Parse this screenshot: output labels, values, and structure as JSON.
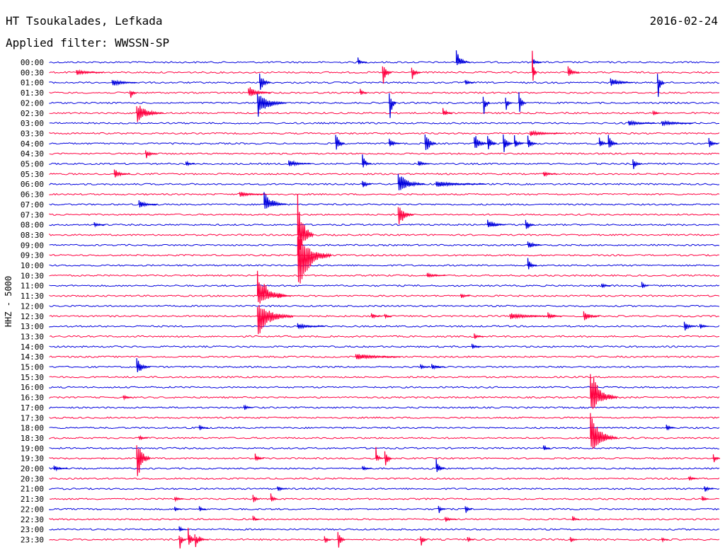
{
  "header": {
    "station": "HT Tsoukalades, Lefkada",
    "date": "2016-02-24",
    "filter": "Applied filter: WWSSN-SP",
    "channel": "HHZ - 5000"
  },
  "colors": {
    "blue": "#0000dd",
    "red": "#ff0040"
  },
  "chart_data": {
    "type": "line",
    "title": "HT Tsoukalades, Lefkada",
    "subtitle": "Applied filter: WWSSN-SP",
    "ylabel": "HHZ - 5000",
    "row_labels": [
      "00:00",
      "00:30",
      "01:00",
      "01:30",
      "02:00",
      "02:30",
      "03:00",
      "03:30",
      "04:00",
      "04:30",
      "05:00",
      "05:30",
      "06:00",
      "06:30",
      "07:00",
      "07:30",
      "08:00",
      "08:30",
      "09:00",
      "09:30",
      "10:00",
      "10:30",
      "11:00",
      "11:30",
      "12:00",
      "12:30",
      "13:00",
      "13:30",
      "14:00",
      "14:30",
      "15:00",
      "15:30",
      "16:00",
      "16:30",
      "17:00",
      "17:30",
      "18:00",
      "18:30",
      "19:00",
      "19:30",
      "20:00",
      "20:30",
      "21:00",
      "21:30",
      "22:00",
      "22:30",
      "23:00",
      "23:30"
    ],
    "row_colors": [
      "blue",
      "red"
    ],
    "minutes_per_row": 30,
    "events": [
      {
        "row": 0,
        "minute": 13.8,
        "up": 0.5,
        "down": 0.3,
        "dur": 0.4
      },
      {
        "row": 0,
        "minute": 18.2,
        "up": 1.2,
        "down": 0.4,
        "dur": 0.6
      },
      {
        "row": 0,
        "minute": 21.6,
        "up": 0.5,
        "down": 0.3,
        "dur": 0.4
      },
      {
        "row": 1,
        "minute": 1.2,
        "up": 0.3,
        "down": 0.3,
        "dur": 1.2
      },
      {
        "row": 1,
        "minute": 14.9,
        "up": 1.0,
        "down": 1.6,
        "dur": 0.4
      },
      {
        "row": 1,
        "minute": 16.2,
        "up": 0.6,
        "down": 1.0,
        "dur": 0.4
      },
      {
        "row": 1,
        "minute": 21.6,
        "up": 2.5,
        "down": 1.9,
        "dur": 0.2
      },
      {
        "row": 1,
        "minute": 23.2,
        "up": 0.8,
        "down": 0.6,
        "dur": 0.5
      },
      {
        "row": 2,
        "minute": 2.8,
        "up": 0.4,
        "down": 0.4,
        "dur": 1.1
      },
      {
        "row": 2,
        "minute": 9.4,
        "up": 1.1,
        "down": 1.2,
        "dur": 0.5
      },
      {
        "row": 2,
        "minute": 18.6,
        "up": 0.4,
        "down": 0.3,
        "dur": 0.4
      },
      {
        "row": 2,
        "minute": 25.1,
        "up": 0.6,
        "down": 0.4,
        "dur": 1.0
      },
      {
        "row": 2,
        "minute": 27.2,
        "up": 1.0,
        "down": 2.3,
        "dur": 0.3
      },
      {
        "row": 3,
        "minute": 3.6,
        "up": 0.3,
        "down": 1.1,
        "dur": 0.3
      },
      {
        "row": 3,
        "minute": 8.9,
        "up": 0.7,
        "down": 0.5,
        "dur": 1.0
      },
      {
        "row": 3,
        "minute": 13.9,
        "up": 0.5,
        "down": 0.3,
        "dur": 0.3
      },
      {
        "row": 4,
        "minute": 9.3,
        "up": 1.0,
        "down": 1.5,
        "dur": 1.3
      },
      {
        "row": 4,
        "minute": 15.2,
        "up": 1.0,
        "down": 2.3,
        "dur": 0.3
      },
      {
        "row": 4,
        "minute": 19.4,
        "up": 0.6,
        "down": 2.0,
        "dur": 0.3
      },
      {
        "row": 4,
        "minute": 20.4,
        "up": 0.6,
        "down": 1.2,
        "dur": 0.3
      },
      {
        "row": 4,
        "minute": 21.0,
        "up": 1.3,
        "down": 1.5,
        "dur": 0.3
      },
      {
        "row": 5,
        "minute": 3.9,
        "up": 1.1,
        "down": 1.0,
        "dur": 1.2
      },
      {
        "row": 5,
        "minute": 17.6,
        "up": 0.7,
        "down": 0.4,
        "dur": 0.4
      },
      {
        "row": 5,
        "minute": 27.0,
        "up": 0.4,
        "down": 0.3,
        "dur": 0.3
      },
      {
        "row": 6,
        "minute": 25.9,
        "up": 0.3,
        "down": 0.3,
        "dur": 1.2
      },
      {
        "row": 6,
        "minute": 27.4,
        "up": 0.3,
        "down": 0.3,
        "dur": 1.4
      },
      {
        "row": 7,
        "minute": 21.5,
        "up": 0.3,
        "down": 0.3,
        "dur": 1.5
      },
      {
        "row": 8,
        "minute": 12.8,
        "up": 1.3,
        "down": 1.2,
        "dur": 0.4
      },
      {
        "row": 8,
        "minute": 15.2,
        "up": 0.6,
        "down": 0.4,
        "dur": 0.5
      },
      {
        "row": 8,
        "minute": 16.8,
        "up": 1.3,
        "down": 1.4,
        "dur": 0.5
      },
      {
        "row": 8,
        "minute": 19.0,
        "up": 1.1,
        "down": 0.8,
        "dur": 0.6
      },
      {
        "row": 8,
        "minute": 19.6,
        "up": 1.2,
        "down": 1.0,
        "dur": 0.4
      },
      {
        "row": 8,
        "minute": 20.3,
        "up": 1.1,
        "down": 1.2,
        "dur": 0.4
      },
      {
        "row": 8,
        "minute": 20.8,
        "up": 0.9,
        "down": 0.7,
        "dur": 0.4
      },
      {
        "row": 8,
        "minute": 21.4,
        "up": 0.8,
        "down": 0.7,
        "dur": 0.4
      },
      {
        "row": 8,
        "minute": 24.6,
        "up": 0.6,
        "down": 0.5,
        "dur": 0.4
      },
      {
        "row": 8,
        "minute": 25.0,
        "up": 1.0,
        "down": 0.9,
        "dur": 0.4
      },
      {
        "row": 8,
        "minute": 29.5,
        "up": 0.6,
        "down": 0.5,
        "dur": 0.4
      },
      {
        "row": 9,
        "minute": 4.3,
        "up": 0.4,
        "down": 0.6,
        "dur": 0.5
      },
      {
        "row": 10,
        "minute": 6.1,
        "up": 0.3,
        "down": 0.3,
        "dur": 0.4
      },
      {
        "row": 10,
        "minute": 10.7,
        "up": 0.5,
        "down": 0.3,
        "dur": 1.0
      },
      {
        "row": 10,
        "minute": 14.0,
        "up": 1.0,
        "down": 0.5,
        "dur": 0.4
      },
      {
        "row": 10,
        "minute": 16.5,
        "up": 0.4,
        "down": 0.3,
        "dur": 0.5
      },
      {
        "row": 10,
        "minute": 26.1,
        "up": 0.6,
        "down": 0.7,
        "dur": 0.4
      },
      {
        "row": 11,
        "minute": 2.9,
        "up": 0.5,
        "down": 0.5,
        "dur": 0.7
      },
      {
        "row": 11,
        "minute": 22.1,
        "up": 0.3,
        "down": 0.3,
        "dur": 0.6
      },
      {
        "row": 12,
        "minute": 14.0,
        "up": 0.4,
        "down": 0.6,
        "dur": 0.4
      },
      {
        "row": 12,
        "minute": 15.6,
        "up": 1.3,
        "down": 0.9,
        "dur": 1.2
      },
      {
        "row": 12,
        "minute": 17.3,
        "up": 0.3,
        "down": 0.3,
        "dur": 2.2
      },
      {
        "row": 13,
        "minute": 8.5,
        "up": 0.3,
        "down": 0.3,
        "dur": 1.2
      },
      {
        "row": 14,
        "minute": 4.0,
        "up": 0.5,
        "down": 0.4,
        "dur": 0.8
      },
      {
        "row": 14,
        "minute": 9.6,
        "up": 1.6,
        "down": 0.6,
        "dur": 1.0
      },
      {
        "row": 15,
        "minute": 15.6,
        "up": 1.0,
        "down": 1.6,
        "dur": 0.7
      },
      {
        "row": 16,
        "minute": 2.0,
        "up": 0.3,
        "down": 0.3,
        "dur": 0.5
      },
      {
        "row": 16,
        "minute": 19.6,
        "up": 0.6,
        "down": 0.4,
        "dur": 0.8
      },
      {
        "row": 16,
        "minute": 21.3,
        "up": 0.5,
        "down": 0.8,
        "dur": 0.4
      },
      {
        "row": 17,
        "minute": 11.1,
        "up": 4.4,
        "down": 2.9,
        "dur": 0.7
      },
      {
        "row": 18,
        "minute": 21.4,
        "up": 0.6,
        "down": 0.5,
        "dur": 0.6
      },
      {
        "row": 19,
        "minute": 11.1,
        "up": 2.2,
        "down": 4.0,
        "dur": 1.5
      },
      {
        "row": 20,
        "minute": 21.4,
        "up": 0.8,
        "down": 0.6,
        "dur": 0.4
      },
      {
        "row": 21,
        "minute": 16.9,
        "up": 0.3,
        "down": 0.3,
        "dur": 0.8
      },
      {
        "row": 22,
        "minute": 24.7,
        "up": 0.3,
        "down": 0.3,
        "dur": 0.4
      },
      {
        "row": 22,
        "minute": 26.5,
        "up": 0.4,
        "down": 0.4,
        "dur": 0.3
      },
      {
        "row": 23,
        "minute": 9.3,
        "up": 2.7,
        "down": 1.1,
        "dur": 1.3
      },
      {
        "row": 23,
        "minute": 10.2,
        "up": 0.3,
        "down": 0.3,
        "dur": 0.6
      },
      {
        "row": 23,
        "minute": 18.4,
        "up": 0.3,
        "down": 0.3,
        "dur": 0.4
      },
      {
        "row": 25,
        "minute": 9.3,
        "up": 1.6,
        "down": 2.1,
        "dur": 1.6
      },
      {
        "row": 25,
        "minute": 14.4,
        "up": 0.3,
        "down": 0.3,
        "dur": 0.5
      },
      {
        "row": 25,
        "minute": 15.0,
        "up": 0.3,
        "down": 0.3,
        "dur": 0.3
      },
      {
        "row": 25,
        "minute": 20.6,
        "up": 0.3,
        "down": 0.3,
        "dur": 2.2
      },
      {
        "row": 25,
        "minute": 22.3,
        "up": 0.4,
        "down": 0.3,
        "dur": 0.6
      },
      {
        "row": 25,
        "minute": 23.9,
        "up": 0.6,
        "down": 0.6,
        "dur": 0.7
      },
      {
        "row": 26,
        "minute": 11.1,
        "up": 0.3,
        "down": 0.3,
        "dur": 1.2
      },
      {
        "row": 26,
        "minute": 28.4,
        "up": 0.6,
        "down": 0.6,
        "dur": 0.5
      },
      {
        "row": 26,
        "minute": 29.1,
        "up": 0.3,
        "down": 0.3,
        "dur": 0.4
      },
      {
        "row": 27,
        "minute": 19.0,
        "up": 0.3,
        "down": 0.3,
        "dur": 0.4
      },
      {
        "row": 28,
        "minute": 18.9,
        "up": 0.3,
        "down": 0.3,
        "dur": 0.4
      },
      {
        "row": 29,
        "minute": 13.7,
        "up": 0.4,
        "down": 0.4,
        "dur": 2.0
      },
      {
        "row": 30,
        "minute": 3.9,
        "up": 0.9,
        "down": 1.1,
        "dur": 0.6
      },
      {
        "row": 30,
        "minute": 16.6,
        "up": 0.3,
        "down": 0.3,
        "dur": 0.4
      },
      {
        "row": 30,
        "minute": 17.1,
        "up": 0.3,
        "down": 0.3,
        "dur": 0.6
      },
      {
        "row": 33,
        "minute": 3.3,
        "up": 0.3,
        "down": 0.3,
        "dur": 0.4
      },
      {
        "row": 33,
        "minute": 24.2,
        "up": 2.9,
        "down": 1.7,
        "dur": 1.2
      },
      {
        "row": 34,
        "minute": 8.7,
        "up": 0.3,
        "down": 0.3,
        "dur": 0.4
      },
      {
        "row": 36,
        "minute": 6.7,
        "up": 0.3,
        "down": 0.3,
        "dur": 0.4
      },
      {
        "row": 36,
        "minute": 27.6,
        "up": 0.4,
        "down": 0.3,
        "dur": 0.4
      },
      {
        "row": 37,
        "minute": 4.0,
        "up": 0.3,
        "down": 0.3,
        "dur": 0.4
      },
      {
        "row": 37,
        "minute": 24.2,
        "up": 2.5,
        "down": 1.6,
        "dur": 1.2
      },
      {
        "row": 38,
        "minute": 22.1,
        "up": 0.4,
        "down": 0.3,
        "dur": 0.3
      },
      {
        "row": 39,
        "minute": 3.9,
        "up": 2.3,
        "down": 2.6,
        "dur": 0.6
      },
      {
        "row": 39,
        "minute": 9.2,
        "up": 0.5,
        "down": 0.3,
        "dur": 0.4
      },
      {
        "row": 39,
        "minute": 14.6,
        "up": 1.2,
        "down": 0.5,
        "dur": 0.3
      },
      {
        "row": 39,
        "minute": 15.0,
        "up": 0.9,
        "down": 1.6,
        "dur": 0.3
      },
      {
        "row": 39,
        "minute": 29.7,
        "up": 0.4,
        "down": 0.6,
        "dur": 0.3
      },
      {
        "row": 40,
        "minute": 0.2,
        "up": 0.3,
        "down": 0.3,
        "dur": 0.6
      },
      {
        "row": 40,
        "minute": 14.0,
        "up": 0.3,
        "down": 0.3,
        "dur": 0.4
      },
      {
        "row": 40,
        "minute": 17.3,
        "up": 1.0,
        "down": 0.6,
        "dur": 0.4
      },
      {
        "row": 41,
        "minute": 28.6,
        "up": 0.3,
        "down": 0.3,
        "dur": 0.4
      },
      {
        "row": 42,
        "minute": 10.2,
        "up": 0.4,
        "down": 0.3,
        "dur": 0.4
      },
      {
        "row": 42,
        "minute": 29.3,
        "up": 0.4,
        "down": 0.4,
        "dur": 0.4
      },
      {
        "row": 43,
        "minute": 5.6,
        "up": 0.3,
        "down": 0.3,
        "dur": 0.4
      },
      {
        "row": 43,
        "minute": 9.1,
        "up": 0.6,
        "down": 0.8,
        "dur": 0.3
      },
      {
        "row": 43,
        "minute": 9.9,
        "up": 0.6,
        "down": 0.6,
        "dur": 0.3
      },
      {
        "row": 43,
        "minute": 29.2,
        "up": 0.5,
        "down": 0.4,
        "dur": 0.3
      },
      {
        "row": 44,
        "minute": 5.6,
        "up": 0.3,
        "down": 0.3,
        "dur": 0.3
      },
      {
        "row": 44,
        "minute": 6.7,
        "up": 0.3,
        "down": 0.3,
        "dur": 0.3
      },
      {
        "row": 44,
        "minute": 17.4,
        "up": 0.4,
        "down": 0.6,
        "dur": 0.3
      },
      {
        "row": 44,
        "minute": 18.6,
        "up": 0.5,
        "down": 0.6,
        "dur": 0.3
      },
      {
        "row": 45,
        "minute": 9.1,
        "up": 0.4,
        "down": 0.3,
        "dur": 0.3
      },
      {
        "row": 45,
        "minute": 17.7,
        "up": 0.3,
        "down": 0.3,
        "dur": 0.5
      },
      {
        "row": 45,
        "minute": 23.4,
        "up": 0.5,
        "down": 0.3,
        "dur": 0.3
      },
      {
        "row": 46,
        "minute": 5.8,
        "up": 0.4,
        "down": 0.3,
        "dur": 0.3
      },
      {
        "row": 47,
        "minute": 5.8,
        "up": 0.6,
        "down": 1.5,
        "dur": 0.3
      },
      {
        "row": 47,
        "minute": 6.2,
        "up": 1.8,
        "down": 1.3,
        "dur": 0.3
      },
      {
        "row": 47,
        "minute": 6.5,
        "up": 0.7,
        "down": 1.3,
        "dur": 0.3
      },
      {
        "row": 47,
        "minute": 6.7,
        "up": 0.3,
        "down": 0.3,
        "dur": 0.4
      },
      {
        "row": 47,
        "minute": 12.3,
        "up": 0.4,
        "down": 0.8,
        "dur": 0.3
      },
      {
        "row": 47,
        "minute": 12.9,
        "up": 1.2,
        "down": 1.2,
        "dur": 0.3
      },
      {
        "row": 47,
        "minute": 16.6,
        "up": 0.4,
        "down": 1.1,
        "dur": 0.3
      },
      {
        "row": 47,
        "minute": 18.7,
        "up": 0.4,
        "down": 0.4,
        "dur": 0.3
      },
      {
        "row": 47,
        "minute": 23.3,
        "up": 0.3,
        "down": 0.6,
        "dur": 0.3
      },
      {
        "row": 47,
        "minute": 27.4,
        "up": 0.3,
        "down": 0.3,
        "dur": 0.3
      }
    ]
  }
}
